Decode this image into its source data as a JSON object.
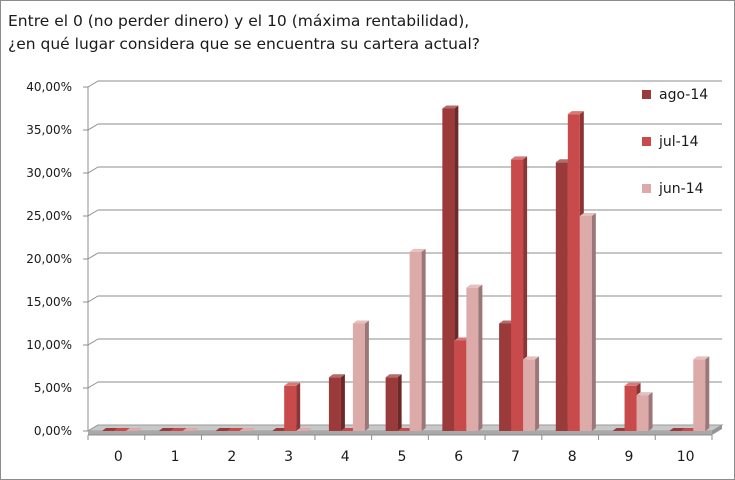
{
  "chart_data": {
    "type": "bar",
    "title_lines": [
      "Entre el 0 (no perder dinero) y el 10 (máxima rentabilidad),",
      "¿en qué lugar considera que se encuentra su cartera actual?"
    ],
    "categories": [
      "0",
      "1",
      "2",
      "3",
      "4",
      "5",
      "6",
      "7",
      "8",
      "9",
      "10"
    ],
    "series": [
      {
        "name": "ago-14",
        "color": "#9b3a3a",
        "values": [
          0,
          0,
          0,
          0,
          6.25,
          6.25,
          37.5,
          12.5,
          31.25,
          0,
          0
        ]
      },
      {
        "name": "jul-14",
        "color": "#c94a4a",
        "values": [
          0,
          0,
          0,
          5.26,
          0,
          0,
          10.53,
          31.58,
          36.84,
          5.26,
          0
        ]
      },
      {
        "name": "jun-14",
        "color": "#ddaaaa",
        "values": [
          0,
          0,
          0,
          0,
          12.5,
          20.83,
          16.67,
          8.33,
          25.0,
          4.17,
          8.33
        ]
      }
    ],
    "y_ticks": [
      "0,00%",
      "5,00%",
      "10,00%",
      "15,00%",
      "20,00%",
      "25,00%",
      "30,00%",
      "35,00%",
      "40,00%"
    ],
    "ylim": [
      0,
      40
    ],
    "y_unit": "%",
    "grid": true,
    "legend_position": "right"
  }
}
